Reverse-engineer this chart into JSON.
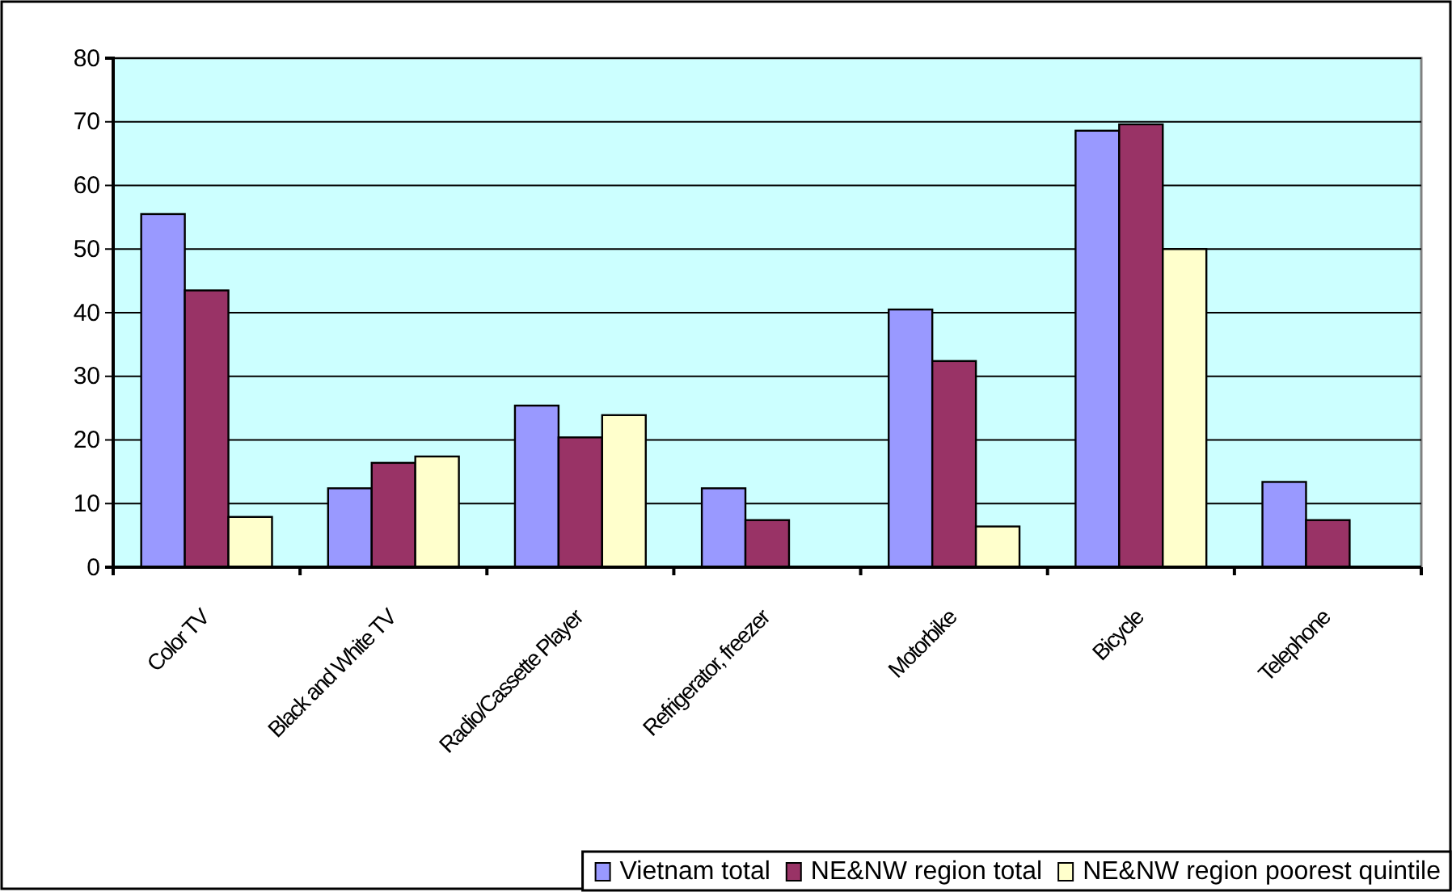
{
  "chart_data": {
    "type": "bar",
    "categories": [
      "Color TV",
      "Black and White TV",
      "Radio/Cassette Player",
      "Refrigerator, freezer",
      "Motorbike",
      "Bicycle",
      "Telephone"
    ],
    "series": [
      {
        "name": "Vietnam total",
        "color": "#9999ff",
        "values": [
          55.5,
          12.4,
          25.4,
          12.4,
          40.5,
          68.6,
          13.4
        ]
      },
      {
        "name": "NE&NW region total",
        "color": "#993366",
        "values": [
          43.5,
          16.4,
          20.4,
          7.4,
          32.4,
          69.6,
          7.4
        ]
      },
      {
        "name": "NE&NW region poorest quintile",
        "color": "#ffffcc",
        "values": [
          7.9,
          17.4,
          23.9,
          0,
          6.4,
          50.0,
          0
        ]
      }
    ],
    "ylim": [
      0,
      80
    ],
    "yticks": [
      0,
      10,
      20,
      30,
      40,
      50,
      60,
      70,
      80
    ],
    "grid": "y",
    "legend": "bottom right"
  }
}
